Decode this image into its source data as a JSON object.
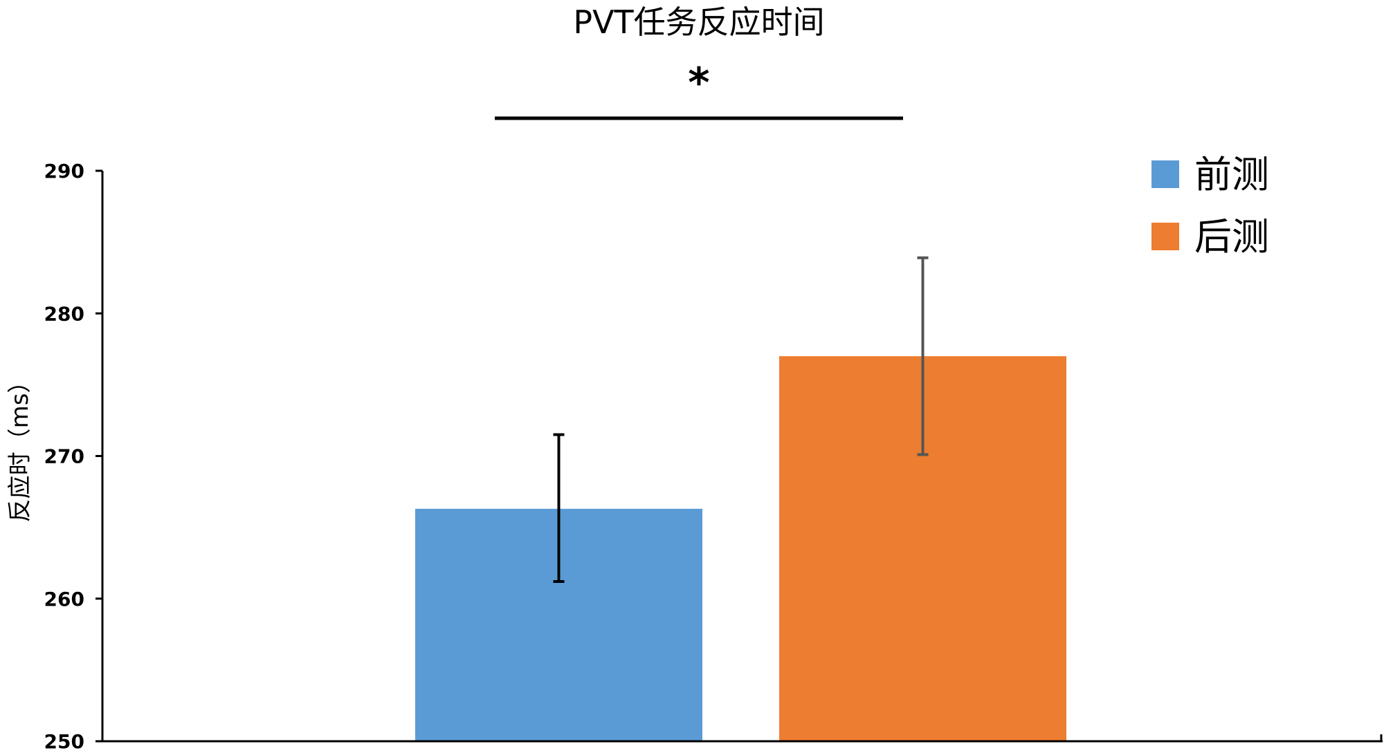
{
  "chart_data": {
    "type": "bar",
    "title": "PVT任务反应时间",
    "ylabel": "反应时（ms）",
    "xlabel": "",
    "ylim": [
      250,
      290
    ],
    "yticks": [
      250,
      260,
      270,
      280,
      290
    ],
    "series": [
      {
        "name": "前测",
        "value": 266.3,
        "error_low": 261.2,
        "error_high": 271.5,
        "color": "#5B9BD5",
        "error_color": "#000000"
      },
      {
        "name": "后测",
        "value": 277.0,
        "error_low": 270.1,
        "error_high": 283.9,
        "color": "#ED7D31",
        "error_color": "#555555"
      }
    ],
    "significance": {
      "label": "*"
    },
    "legend_position": "top-right",
    "grid": false
  }
}
